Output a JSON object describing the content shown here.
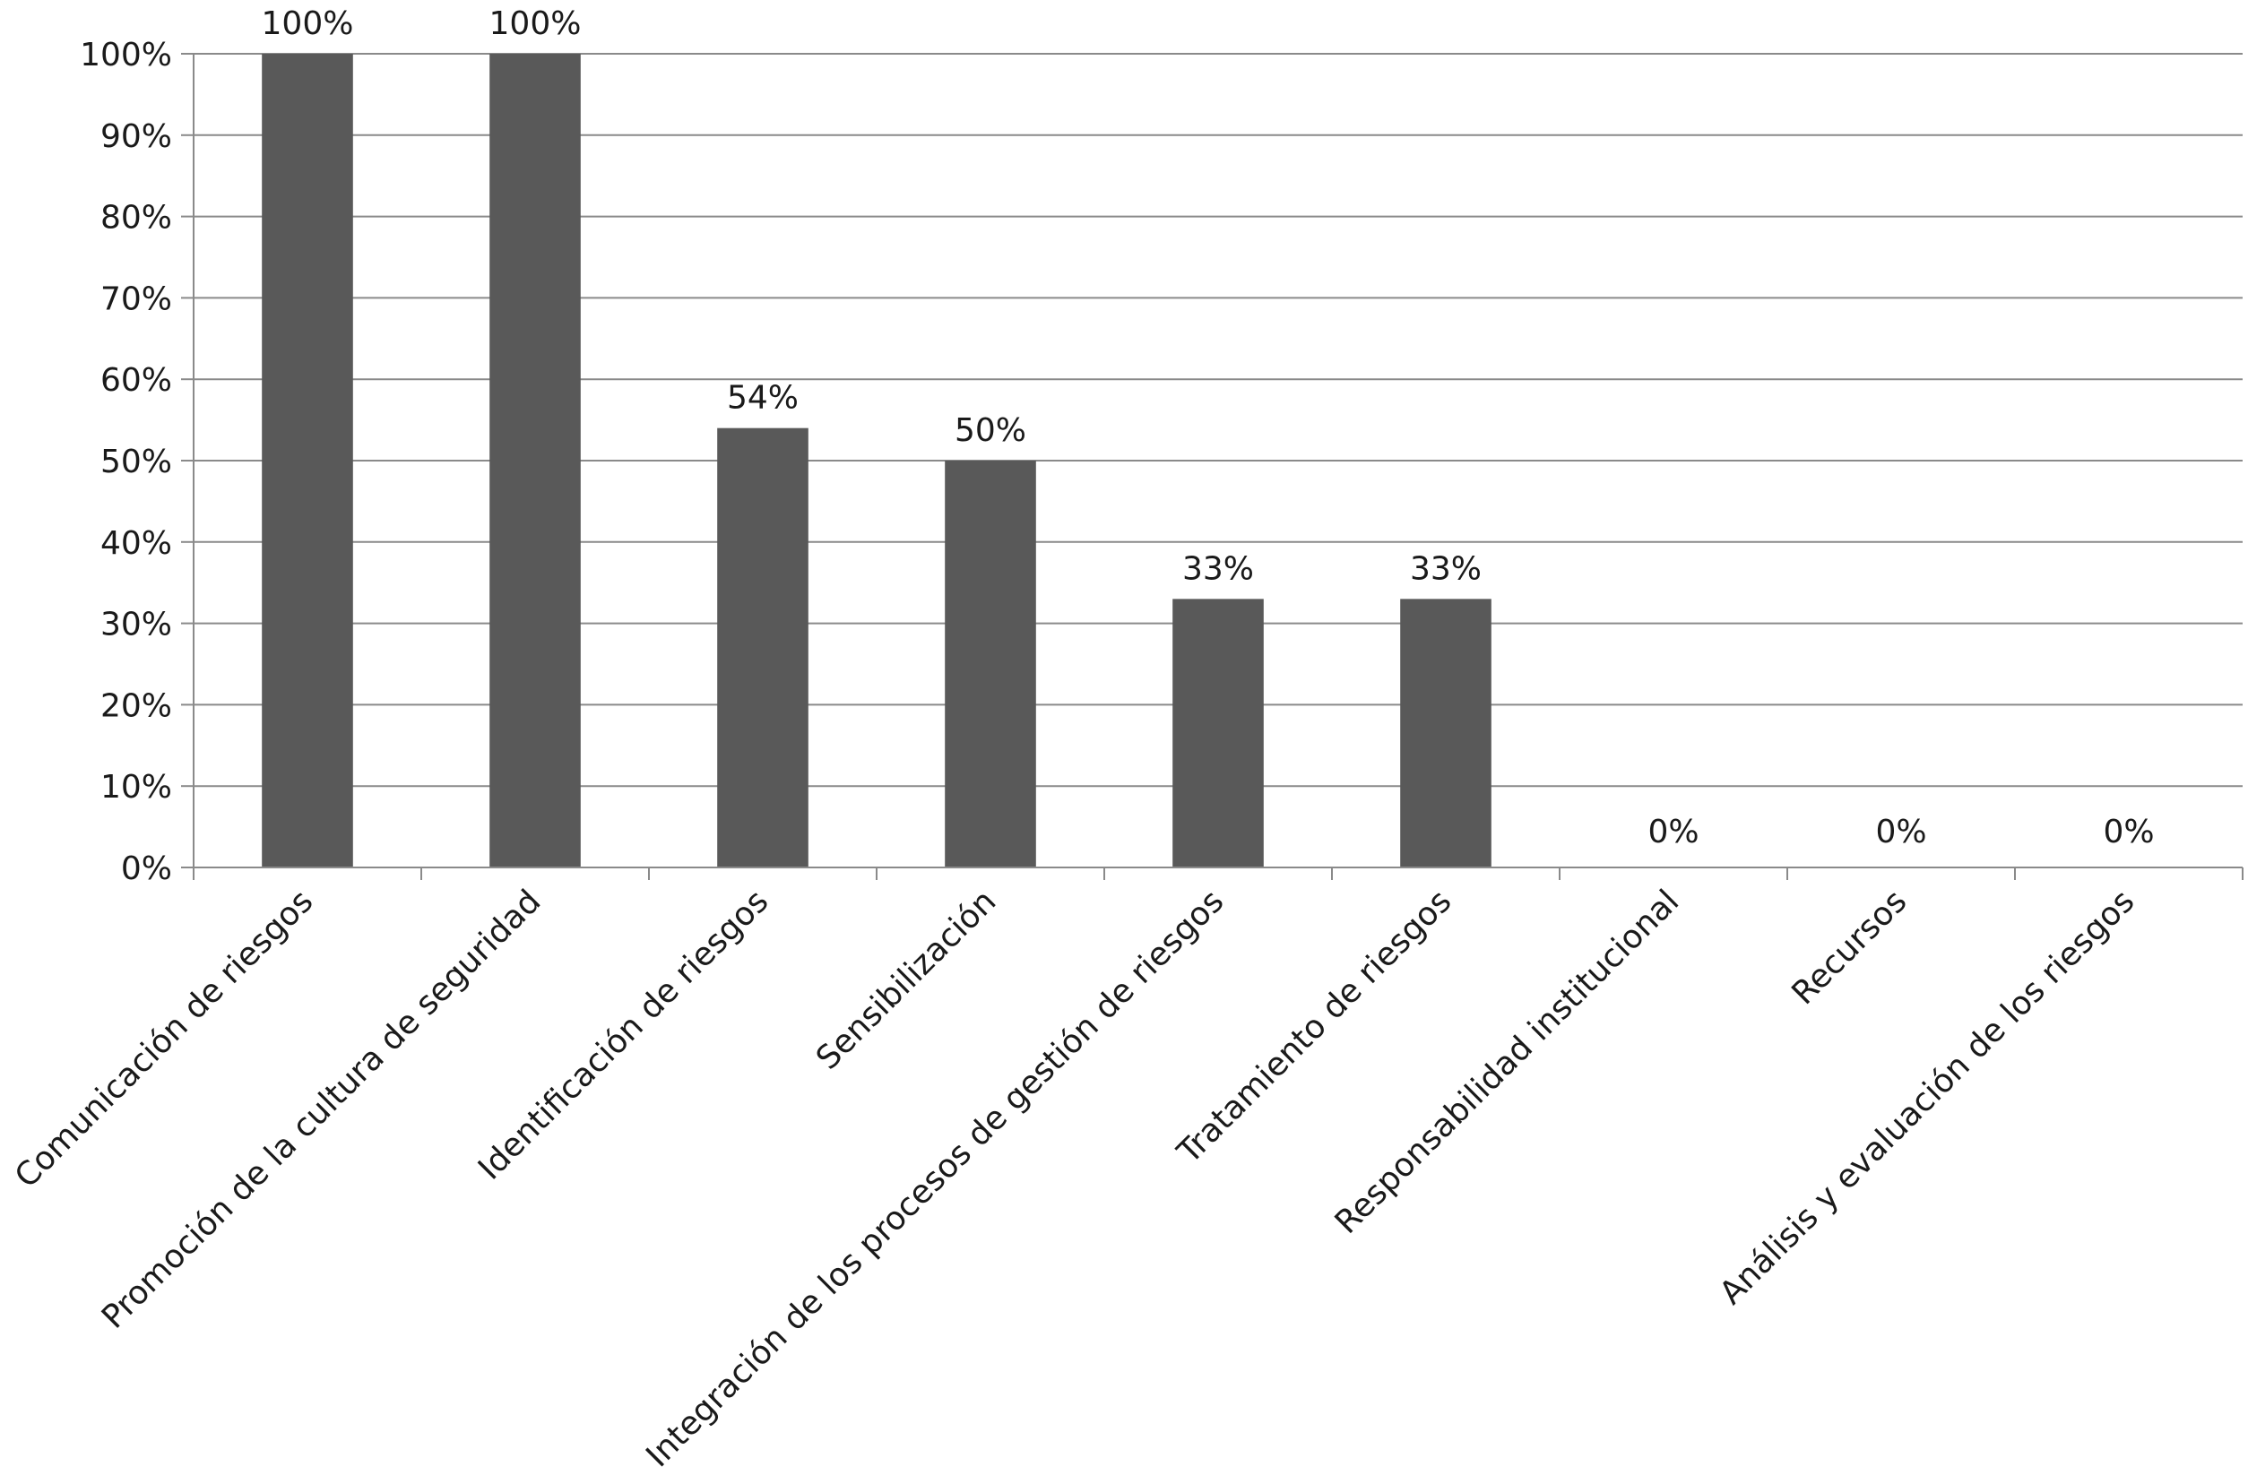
{
  "chart_data": {
    "type": "bar",
    "title": "",
    "xlabel": "",
    "ylabel": "",
    "categories": [
      "Comunicación de riesgos",
      "Promoción de la cultura de seguridad",
      "Identificación de riesgos",
      "Sensibilización",
      "Integración de los procesos de gestión de riesgos",
      "Tratamiento de riesgos",
      "Responsabilidad institucional",
      "Recursos",
      "Análisis y evaluación de los riesgos"
    ],
    "values": [
      100,
      100,
      54,
      50,
      33,
      33,
      0,
      0,
      0
    ],
    "data_labels": [
      "100%",
      "100%",
      "54%",
      "50%",
      "33%",
      "33%",
      "0%",
      "0%",
      "0%"
    ],
    "ylim": [
      0,
      100
    ],
    "yticks": [
      0,
      10,
      20,
      30,
      40,
      50,
      60,
      70,
      80,
      90,
      100
    ],
    "ytick_labels": [
      "0%",
      "10%",
      "20%",
      "30%",
      "40%",
      "50%",
      "60%",
      "70%",
      "80%",
      "90%",
      "100%"
    ],
    "grid": true,
    "legend": "none",
    "colors": {
      "bar": "#595959",
      "grid": "#8a8a8a",
      "text": "#1a1a1a"
    }
  }
}
